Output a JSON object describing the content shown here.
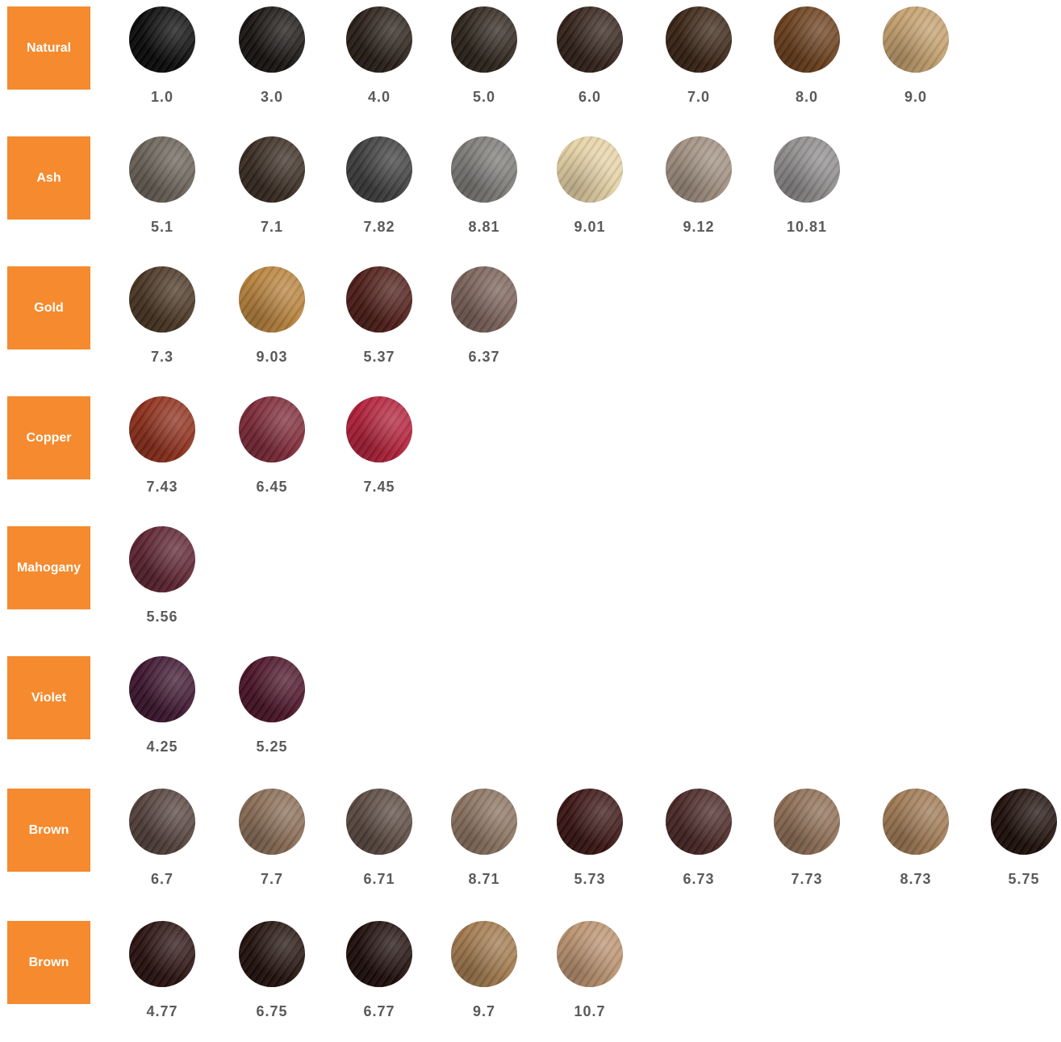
{
  "families": [
    {
      "name": "Natural",
      "shades": [
        {
          "code": "1.0",
          "color": "#0a0a0a"
        },
        {
          "code": "3.0",
          "color": "#181412"
        },
        {
          "code": "4.0",
          "color": "#2a1f18"
        },
        {
          "code": "5.0",
          "color": "#2e241b"
        },
        {
          "code": "6.0",
          "color": "#33221a"
        },
        {
          "code": "7.0",
          "color": "#3a2415"
        },
        {
          "code": "8.0",
          "color": "#6b3f1c"
        },
        {
          "code": "9.0",
          "color": "#c4a06e"
        }
      ]
    },
    {
      "name": "Ash",
      "shades": [
        {
          "code": "5.1",
          "color": "#6a6258"
        },
        {
          "code": "7.1",
          "color": "#3a2c22"
        },
        {
          "code": "7.82",
          "color": "#3e3e3e"
        },
        {
          "code": "8.81",
          "color": "#7d7b78"
        },
        {
          "code": "9.01",
          "color": "#e6d3a6"
        },
        {
          "code": "9.12",
          "color": "#a08f80"
        },
        {
          "code": "10.81",
          "color": "#8f8c8c"
        }
      ]
    },
    {
      "name": "Gold",
      "shades": [
        {
          "code": "7.3",
          "color": "#4a3624"
        },
        {
          "code": "9.03",
          "color": "#b9833d"
        },
        {
          "code": "5.37",
          "color": "#4f1d18"
        },
        {
          "code": "6.37",
          "color": "#7a6259"
        }
      ]
    },
    {
      "name": "Copper",
      "shades": [
        {
          "code": "7.43",
          "color": "#8f2f1b"
        },
        {
          "code": "6.45",
          "color": "#7e2a38"
        },
        {
          "code": "7.45",
          "color": "#b3203a"
        }
      ]
    },
    {
      "name": "Mahogany",
      "shades": [
        {
          "code": "5.56",
          "color": "#5e2432"
        }
      ]
    },
    {
      "name": "Violet",
      "shades": [
        {
          "code": "4.25",
          "color": "#3e1630"
        },
        {
          "code": "5.25",
          "color": "#4c1428"
        }
      ]
    },
    {
      "name": "Brown",
      "shades": [
        {
          "code": "6.7",
          "color": "#55423d"
        },
        {
          "code": "7.7",
          "color": "#8a6d56"
        },
        {
          "code": "6.71",
          "color": "#5b4a41"
        },
        {
          "code": "8.71",
          "color": "#8b7360"
        },
        {
          "code": "5.73",
          "color": "#3a1514"
        },
        {
          "code": "6.73",
          "color": "#4a2826"
        },
        {
          "code": "7.73",
          "color": "#8e6e55"
        },
        {
          "code": "8.73",
          "color": "#a07a54"
        },
        {
          "code": "5.75",
          "color": "#1f0f0a"
        }
      ]
    },
    {
      "name": "Brown",
      "shades": [
        {
          "code": "4.77",
          "color": "#2a1210"
        },
        {
          "code": "6.75",
          "color": "#22110c"
        },
        {
          "code": "6.77",
          "color": "#1e0d0a"
        },
        {
          "code": "9.7",
          "color": "#a27a4e"
        },
        {
          "code": "10.7",
          "color": "#bb9370"
        }
      ]
    }
  ]
}
